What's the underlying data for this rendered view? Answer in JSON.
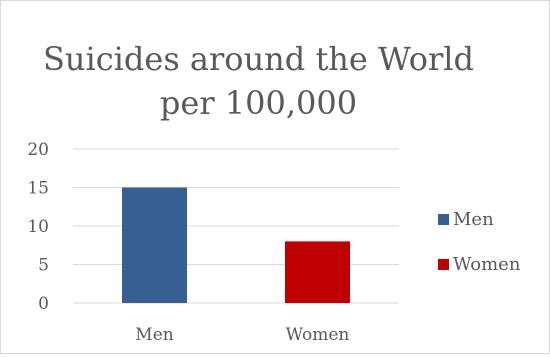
{
  "chart_data": {
    "type": "bar",
    "title_lines": [
      "Suicides around the World",
      "per 100,000"
    ],
    "categories": [
      "Men",
      "Women"
    ],
    "values": [
      15,
      8
    ],
    "colors": [
      "#376092",
      "#c00000"
    ],
    "ylim": [
      0,
      20
    ],
    "yticks": [
      "0",
      "5",
      "10",
      "15",
      "20"
    ],
    "grid": true,
    "legend": {
      "position": "right",
      "entries": [
        {
          "label": "Men",
          "color": "#376092"
        },
        {
          "label": "Women",
          "color": "#c00000"
        }
      ]
    }
  }
}
